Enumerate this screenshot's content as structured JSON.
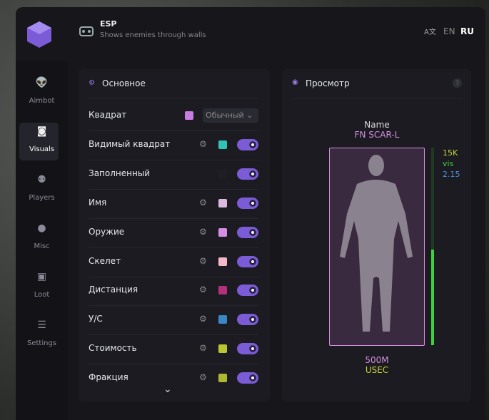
{
  "header": {
    "title": "ESP",
    "subtitle": "Shows enemies through walls",
    "languages": [
      "EN",
      "RU"
    ]
  },
  "sidebar": [
    "Aimbot",
    "Visuals",
    "Players",
    "Misc",
    "Loot",
    "Settings"
  ],
  "main_panel": {
    "title": "Основное",
    "dropdown": "Обычный",
    "rows": [
      {
        "label": "Квадрат",
        "color": "#c77ce0"
      },
      {
        "label": "Видимый квадрат",
        "color": "#2ec4b6"
      },
      {
        "label": "Заполненный",
        "color": "#1e1e24"
      },
      {
        "label": "Имя",
        "color": "#dcb9e0"
      },
      {
        "label": "Оружие",
        "color": "#d58ee3"
      },
      {
        "label": "Скелет",
        "color": "#f4b9c9"
      },
      {
        "label": "Дистанция",
        "color": "#b3307c"
      },
      {
        "label": "У/С",
        "color": "#3a87c8"
      },
      {
        "label": "Стоимость",
        "color": "#b9c632"
      },
      {
        "label": "Фракция",
        "color": "#aeb830"
      }
    ]
  },
  "preview": {
    "title": "Просмотр",
    "name": "Name",
    "weapon": "FN SCAR-L",
    "value": "15K",
    "visibility": "vis",
    "kd": "2.15",
    "distance": "500M",
    "faction": "USEC"
  }
}
